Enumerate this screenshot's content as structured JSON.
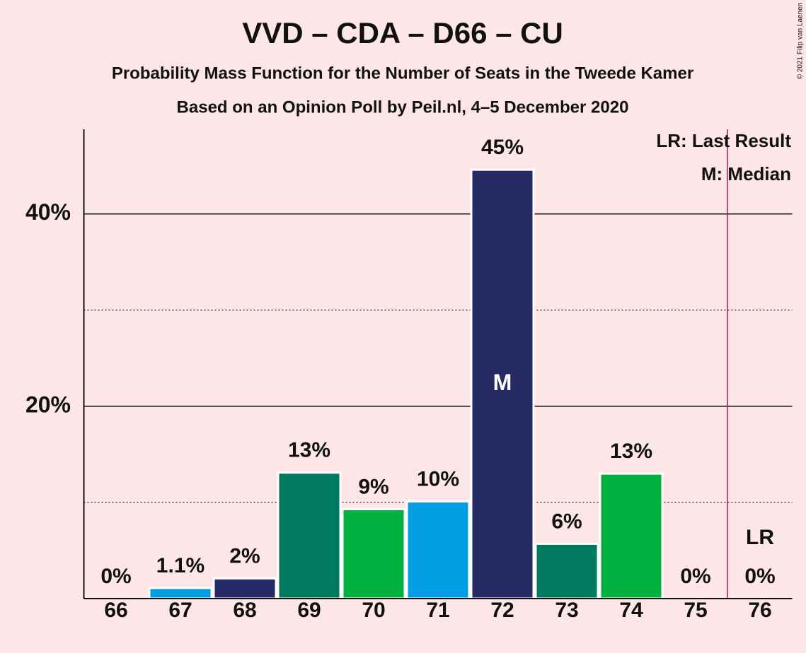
{
  "chart_data": {
    "type": "bar",
    "title": "VVD – CDA – D66 – CU",
    "subtitle": "Probability Mass Function for the Number of Seats in the Tweede Kamer",
    "subtitle2": "Based on an Opinion Poll by Peil.nl, 4–5 December 2020",
    "copyright": "© 2021 Filip van Laenen",
    "categories": [
      "66",
      "67",
      "68",
      "69",
      "70",
      "71",
      "72",
      "73",
      "74",
      "75",
      "76"
    ],
    "values": [
      0,
      1.1,
      2.1,
      13.1,
      9.3,
      10.1,
      44.6,
      5.7,
      13.0,
      0,
      0
    ],
    "value_labels": [
      "0%",
      "1.1%",
      "2%",
      "13%",
      "9%",
      "10%",
      "45%",
      "6%",
      "13%",
      "0%",
      "0%"
    ],
    "colors": [
      "#009fe3",
      "#009fe3",
      "#262b66",
      "#007a5e",
      "#00b140",
      "#009fe3",
      "#262b66",
      "#007a5e",
      "#00b140",
      "#00b140",
      "#009fe3"
    ],
    "ylim": [
      0,
      48.8
    ],
    "yticks": [
      {
        "value": 20,
        "label": "20%"
      },
      {
        "value": 40,
        "label": "40%"
      }
    ],
    "minor_grid": [
      10,
      30
    ],
    "median": 72,
    "median_label": "M",
    "last_result": 76,
    "last_result_label": "LR",
    "last_result_color": "#c0143c",
    "legend": [
      "LR: Last Result",
      "M: Median"
    ],
    "legend_position": "upper right"
  }
}
